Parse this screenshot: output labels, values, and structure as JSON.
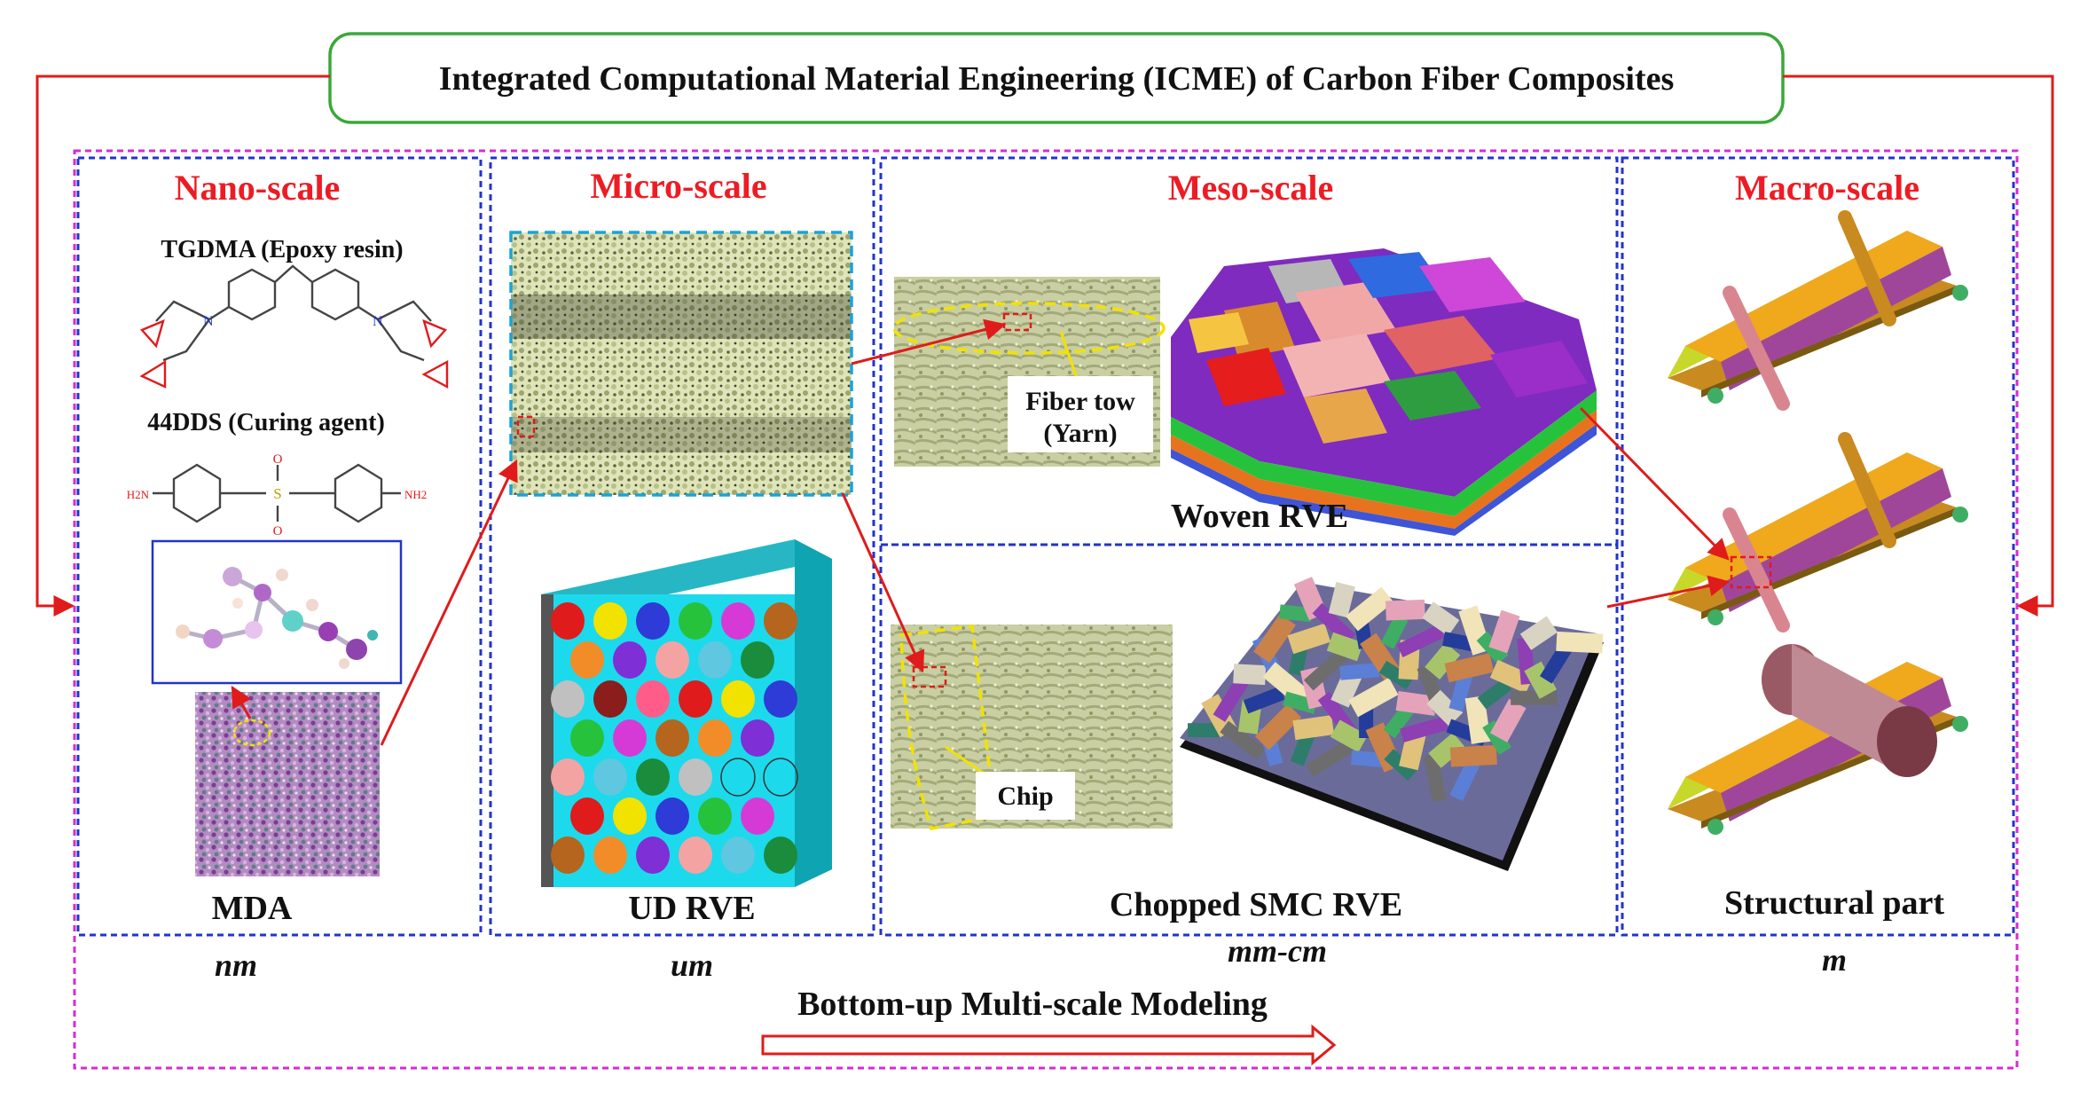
{
  "title": "Integrated Computational Material Engineering (ICME) of Carbon Fiber Composites",
  "scales": [
    {
      "header": "Nano-scale",
      "unit": "nm"
    },
    {
      "header": "Micro-scale",
      "unit": "um"
    },
    {
      "header": "Meso-scale",
      "unit": "mm-cm"
    },
    {
      "header": "Macro-scale",
      "unit": "m"
    }
  ],
  "nano": {
    "resin_label": "TGDMA (Epoxy resin)",
    "curing_label": "44DDS (Curing agent)",
    "amine_left": "H2N",
    "amine_right": "NH2",
    "sulfonyl_s": "S",
    "sulfonyl_o": "O",
    "model_label": "MDA"
  },
  "micro": {
    "model_label": "UD RVE"
  },
  "meso": {
    "fiber_tow_line1": "Fiber tow",
    "fiber_tow_line2": "(Yarn)",
    "woven_label": "Woven RVE",
    "chip_label": "Chip",
    "smc_label": "Chopped SMC RVE"
  },
  "macro": {
    "model_label": "Structural part"
  },
  "footer": {
    "text": "Bottom-up  Multi-scale Modeling"
  },
  "colors": {
    "accent_red": "#ed1c24",
    "panel_border_blue": "#2233cc",
    "outer_border_magenta": "#d62bd6",
    "title_border_green": "#3aa83a",
    "outline_yellow": "#f2e200"
  }
}
